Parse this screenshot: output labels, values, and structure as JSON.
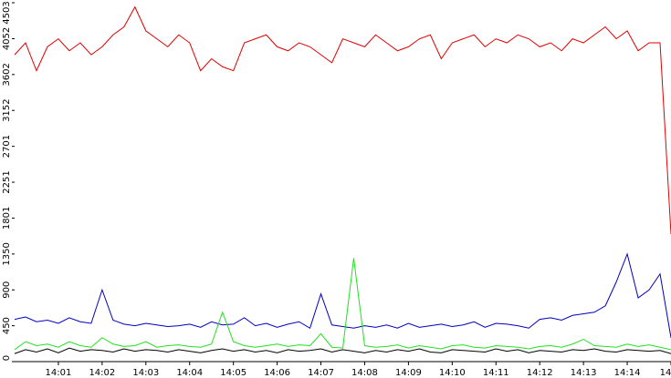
{
  "chart_data": {
    "type": "line",
    "x": [
      0,
      0.25,
      0.5,
      0.75,
      1,
      1.25,
      1.5,
      1.75,
      2,
      2.25,
      2.5,
      2.75,
      3,
      3.25,
      3.5,
      3.75,
      4,
      4.25,
      4.5,
      4.75,
      5,
      5.25,
      5.5,
      5.75,
      6,
      6.25,
      6.5,
      6.75,
      7,
      7.25,
      7.5,
      7.75,
      8,
      8.25,
      8.5,
      8.75,
      9,
      9.25,
      9.5,
      9.75,
      10,
      10.25,
      10.5,
      10.75,
      11,
      11.25,
      11.5,
      11.75,
      12,
      12.25,
      12.5,
      12.75,
      13,
      13.25,
      13.5,
      13.75,
      14,
      14.25,
      14.5,
      14.75,
      15
    ],
    "series": [
      {
        "color": "#e00000",
        "values": [
          3850,
          4000,
          3650,
          3950,
          4050,
          3900,
          4000,
          3850,
          3950,
          4100,
          4200,
          4450,
          4150,
          4050,
          3950,
          4100,
          4000,
          3650,
          3800,
          3700,
          3650,
          4000,
          4050,
          4100,
          3950,
          3900,
          4000,
          3950,
          3850,
          3750,
          4050,
          4000,
          3950,
          4100,
          4000,
          3900,
          3950,
          4050,
          4100,
          3800,
          4000,
          4050,
          4100,
          3950,
          4050,
          4000,
          4100,
          4050,
          3950,
          4000,
          3900,
          4050,
          4000,
          4100,
          4200,
          4050,
          4150,
          3900,
          4000,
          4000,
          1600
        ]
      },
      {
        "color": "#0000c0",
        "values": [
          530,
          560,
          500,
          520,
          480,
          550,
          500,
          480,
          900,
          520,
          470,
          450,
          480,
          460,
          440,
          450,
          470,
          430,
          500,
          460,
          470,
          550,
          450,
          480,
          430,
          470,
          500,
          420,
          850,
          460,
          440,
          420,
          450,
          430,
          460,
          420,
          480,
          430,
          450,
          470,
          440,
          460,
          500,
          430,
          480,
          470,
          450,
          420,
          530,
          550,
          520,
          580,
          600,
          620,
          700,
          1000,
          1350,
          800,
          900,
          1100,
          300
        ]
      },
      {
        "color": "#22e022",
        "values": [
          150,
          250,
          200,
          220,
          180,
          250,
          200,
          180,
          300,
          220,
          190,
          200,
          250,
          180,
          200,
          210,
          190,
          180,
          220,
          620,
          250,
          200,
          180,
          200,
          220,
          190,
          210,
          200,
          350,
          180,
          170,
          1300,
          200,
          180,
          190,
          210,
          170,
          200,
          180,
          160,
          200,
          210,
          180,
          170,
          200,
          190,
          180,
          160,
          190,
          200,
          180,
          220,
          280,
          200,
          190,
          180,
          220,
          190,
          210,
          180,
          150
        ]
      },
      {
        "color": "#000000",
        "values": [
          100,
          150,
          120,
          160,
          110,
          170,
          130,
          150,
          140,
          120,
          160,
          130,
          150,
          140,
          120,
          150,
          130,
          110,
          140,
          160,
          130,
          150,
          120,
          140,
          110,
          150,
          130,
          140,
          160,
          120,
          150,
          130,
          110,
          140,
          120,
          150,
          130,
          160,
          120,
          110,
          150,
          140,
          130,
          120,
          160,
          130,
          150,
          110,
          140,
          130,
          120,
          150,
          140,
          160,
          130,
          120,
          150,
          140,
          130,
          140,
          100
        ]
      }
    ],
    "xlim": [
      0,
      15
    ],
    "xticks": [
      {
        "value": 1,
        "label": "14:01"
      },
      {
        "value": 2,
        "label": "14:02"
      },
      {
        "value": 3,
        "label": "14:03"
      },
      {
        "value": 4,
        "label": "14:04"
      },
      {
        "value": 5,
        "label": "14:05"
      },
      {
        "value": 6,
        "label": "14:06"
      },
      {
        "value": 7,
        "label": "14:07"
      },
      {
        "value": 8,
        "label": "14:08"
      },
      {
        "value": 9,
        "label": "14:09"
      },
      {
        "value": 10,
        "label": "14:10"
      },
      {
        "value": 11,
        "label": "14:11"
      },
      {
        "value": 12,
        "label": "14:12"
      },
      {
        "value": 13,
        "label": "14:13"
      },
      {
        "value": 14,
        "label": "14:14"
      },
      {
        "value": 15,
        "label": "14"
      }
    ],
    "ylim": [
      0,
      4503
    ],
    "yticks": [
      0,
      450,
      900,
      1350,
      1801,
      2251,
      2701,
      3152,
      3602,
      4052,
      4503
    ]
  }
}
